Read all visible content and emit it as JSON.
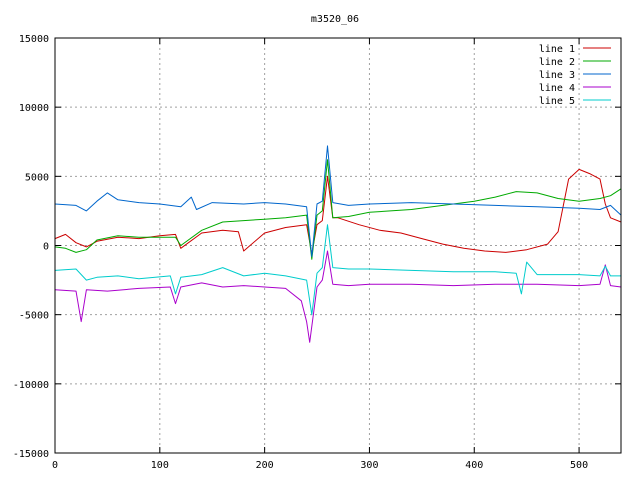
{
  "chart_data": {
    "type": "line",
    "title": "m3520_06",
    "xlabel": "",
    "ylabel": "",
    "xlim": [
      0,
      540
    ],
    "ylim": [
      -15000,
      15000
    ],
    "xticks": [
      0,
      100,
      200,
      300,
      400,
      500
    ],
    "yticks": [
      -15000,
      -10000,
      -5000,
      0,
      5000,
      10000,
      15000
    ],
    "grid": true,
    "legend_position": "top-right",
    "series": [
      {
        "name": "line 1",
        "color": "#cc0000",
        "x": [
          0,
          10,
          20,
          30,
          40,
          60,
          80,
          100,
          115,
          120,
          140,
          160,
          175,
          180,
          200,
          220,
          240,
          245,
          250,
          255,
          260,
          265,
          270,
          290,
          310,
          330,
          350,
          370,
          390,
          410,
          430,
          450,
          470,
          480,
          490,
          500,
          510,
          520,
          525,
          530,
          540
        ],
        "y": [
          500,
          800,
          200,
          -100,
          300,
          600,
          500,
          700,
          800,
          -200,
          900,
          1100,
          1000,
          -400,
          900,
          1300,
          1500,
          -600,
          1500,
          1800,
          5000,
          2000,
          2000,
          1500,
          1100,
          900,
          500,
          100,
          -200,
          -400,
          -500,
          -300,
          100,
          1000,
          4800,
          5500,
          5200,
          4800,
          3000,
          2000,
          1700
        ]
      },
      {
        "name": "line 2",
        "color": "#00aa00",
        "x": [
          0,
          10,
          20,
          30,
          40,
          60,
          80,
          100,
          115,
          120,
          140,
          160,
          180,
          200,
          220,
          240,
          245,
          250,
          255,
          260,
          265,
          280,
          300,
          320,
          340,
          360,
          380,
          400,
          420,
          440,
          460,
          480,
          500,
          520,
          530,
          540
        ],
        "y": [
          -100,
          -200,
          -500,
          -300,
          400,
          700,
          600,
          600,
          600,
          0,
          1100,
          1700,
          1800,
          1900,
          2000,
          2200,
          -1000,
          2200,
          2500,
          6200,
          2000,
          2100,
          2400,
          2500,
          2600,
          2800,
          3000,
          3200,
          3500,
          3900,
          3800,
          3400,
          3200,
          3400,
          3600,
          4100
        ]
      },
      {
        "name": "line 3",
        "color": "#0066cc",
        "x": [
          0,
          20,
          30,
          40,
          50,
          60,
          80,
          100,
          120,
          130,
          135,
          150,
          180,
          200,
          220,
          240,
          245,
          250,
          255,
          260,
          265,
          280,
          300,
          340,
          380,
          420,
          460,
          500,
          520,
          530,
          540
        ],
        "y": [
          3000,
          2900,
          2500,
          3200,
          3800,
          3300,
          3100,
          3000,
          2800,
          3500,
          2600,
          3100,
          3000,
          3100,
          3000,
          2800,
          -800,
          3000,
          3200,
          7200,
          3100,
          2900,
          3000,
          3100,
          3000,
          2900,
          2800,
          2700,
          2600,
          2900,
          2200
        ]
      },
      {
        "name": "line 4",
        "color": "#aa00cc",
        "x": [
          0,
          20,
          25,
          30,
          50,
          80,
          110,
          115,
          120,
          140,
          160,
          180,
          200,
          220,
          235,
          240,
          243,
          250,
          255,
          260,
          265,
          280,
          300,
          340,
          380,
          420,
          460,
          500,
          520,
          525,
          530,
          540
        ],
        "y": [
          -3200,
          -3300,
          -5500,
          -3200,
          -3300,
          -3100,
          -3000,
          -4200,
          -3000,
          -2700,
          -3000,
          -2900,
          -3000,
          -3100,
          -4000,
          -5500,
          -7000,
          -3000,
          -2500,
          -400,
          -2800,
          -2900,
          -2800,
          -2800,
          -2900,
          -2800,
          -2800,
          -2900,
          -2800,
          -1400,
          -2900,
          -3000
        ]
      },
      {
        "name": "line 5",
        "color": "#00cccc",
        "x": [
          0,
          20,
          30,
          40,
          60,
          80,
          110,
          115,
          120,
          140,
          160,
          180,
          200,
          220,
          240,
          245,
          250,
          255,
          260,
          265,
          280,
          300,
          340,
          380,
          420,
          440,
          445,
          450,
          460,
          500,
          520,
          525,
          530,
          540
        ],
        "y": [
          -1800,
          -1700,
          -2500,
          -2300,
          -2200,
          -2400,
          -2200,
          -3500,
          -2300,
          -2100,
          -1600,
          -2200,
          -2000,
          -2200,
          -2500,
          -5000,
          -2000,
          -1600,
          1500,
          -1600,
          -1700,
          -1700,
          -1800,
          -1900,
          -1900,
          -2000,
          -3500,
          -1200,
          -2100,
          -2100,
          -2200,
          -1500,
          -2200,
          -2200
        ]
      }
    ]
  }
}
